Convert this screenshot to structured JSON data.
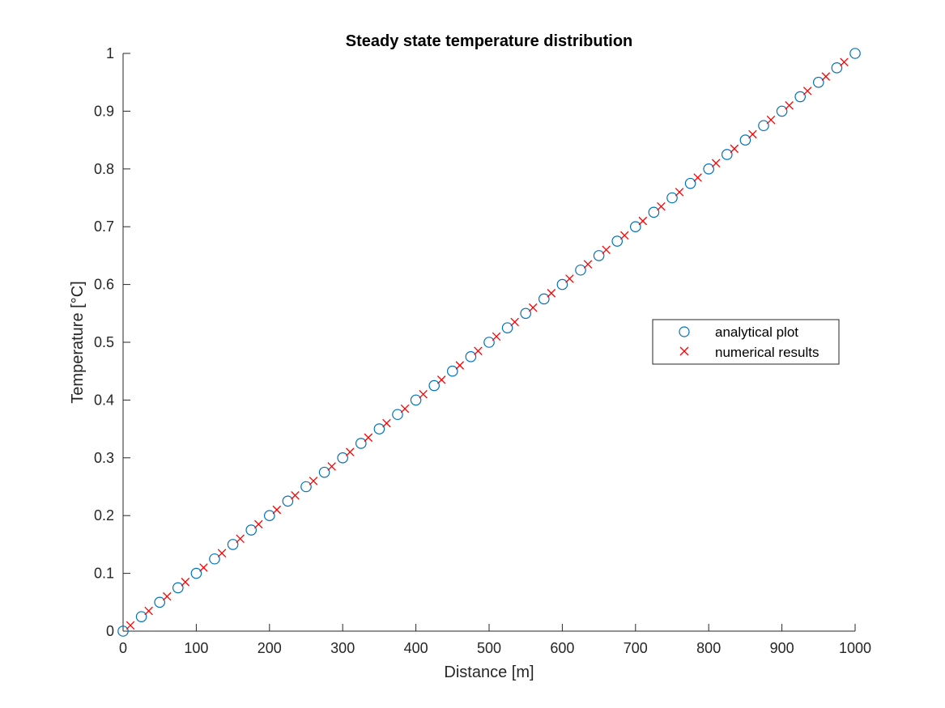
{
  "chart_data": {
    "type": "scatter",
    "title": "Steady state temperature distribution",
    "xlabel": "Distance [m]",
    "ylabel": "Temperature [°C]",
    "xlim": [
      0,
      1000
    ],
    "ylim": [
      0,
      1
    ],
    "xticks": [
      "0",
      "100",
      "200",
      "300",
      "400",
      "500",
      "600",
      "700",
      "800",
      "900",
      "1000"
    ],
    "yticks": [
      "0",
      "0.1",
      "0.2",
      "0.3",
      "0.4",
      "0.5",
      "0.6",
      "0.7",
      "0.8",
      "0.9",
      "1"
    ],
    "grid": false,
    "legend_position": "right",
    "series": [
      {
        "name": "analytical plot",
        "marker": "circle",
        "color": "#0072BD",
        "x": [
          0,
          25,
          50,
          75,
          100,
          125,
          150,
          175,
          200,
          225,
          250,
          275,
          300,
          325,
          350,
          375,
          400,
          425,
          450,
          475,
          500,
          525,
          550,
          575,
          600,
          625,
          650,
          675,
          700,
          725,
          750,
          775,
          800,
          825,
          850,
          875,
          900,
          925,
          950,
          975,
          1000
        ],
        "y": [
          0,
          0.025,
          0.05,
          0.075,
          0.1,
          0.125,
          0.15,
          0.175,
          0.2,
          0.225,
          0.25,
          0.275,
          0.3,
          0.325,
          0.35,
          0.375,
          0.4,
          0.425,
          0.45,
          0.475,
          0.5,
          0.525,
          0.55,
          0.575,
          0.6,
          0.625,
          0.65,
          0.675,
          0.7,
          0.725,
          0.75,
          0.775,
          0.8,
          0.825,
          0.85,
          0.875,
          0.9,
          0.925,
          0.95,
          0.975,
          1
        ]
      },
      {
        "name": "numerical results",
        "marker": "x",
        "color": "#FF0000",
        "x": [
          10,
          35,
          60,
          85,
          110,
          135,
          160,
          185,
          210,
          235,
          260,
          285,
          310,
          335,
          360,
          385,
          410,
          435,
          460,
          485,
          510,
          535,
          560,
          585,
          610,
          635,
          660,
          685,
          710,
          735,
          760,
          785,
          810,
          835,
          860,
          885,
          910,
          935,
          960,
          985
        ],
        "y": [
          0.01,
          0.035,
          0.06,
          0.085,
          0.11,
          0.135,
          0.16,
          0.185,
          0.21,
          0.235,
          0.26,
          0.285,
          0.31,
          0.335,
          0.36,
          0.385,
          0.41,
          0.435,
          0.46,
          0.485,
          0.51,
          0.535,
          0.56,
          0.585,
          0.61,
          0.635,
          0.66,
          0.685,
          0.71,
          0.735,
          0.76,
          0.785,
          0.81,
          0.835,
          0.86,
          0.885,
          0.91,
          0.935,
          0.96,
          0.985
        ]
      }
    ]
  }
}
